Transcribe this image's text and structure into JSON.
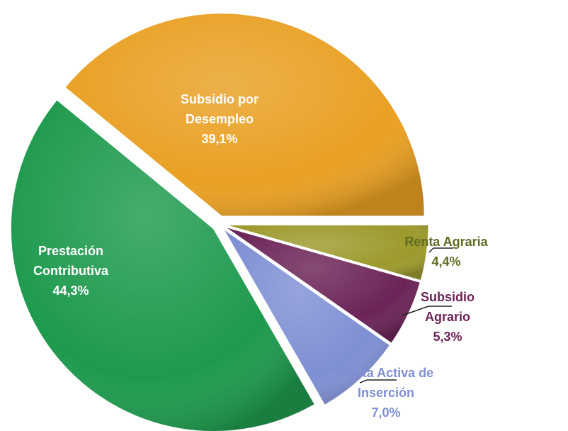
{
  "chart_data": {
    "type": "pie",
    "categories": [
      "Subsidio por Desempleo",
      "Prestación Contributiva",
      "Renta Activa de Inserción",
      "Subsidio Agrario",
      "Renta Agraria"
    ],
    "values": [
      39.1,
      44.3,
      7.0,
      5.3,
      4.4
    ],
    "value_labels": [
      "39,1%",
      "44,3%",
      "7,0%",
      "5,3%",
      "4,4%"
    ],
    "colors": [
      "#E9A023",
      "#1E9A4E",
      "#7F8FD4",
      "#6B2457",
      "#9C9A2C"
    ],
    "label_colors": [
      "#ffffff",
      "#ffffff",
      "#7F8FD4",
      "#6B2457",
      "#5E6B20"
    ]
  }
}
